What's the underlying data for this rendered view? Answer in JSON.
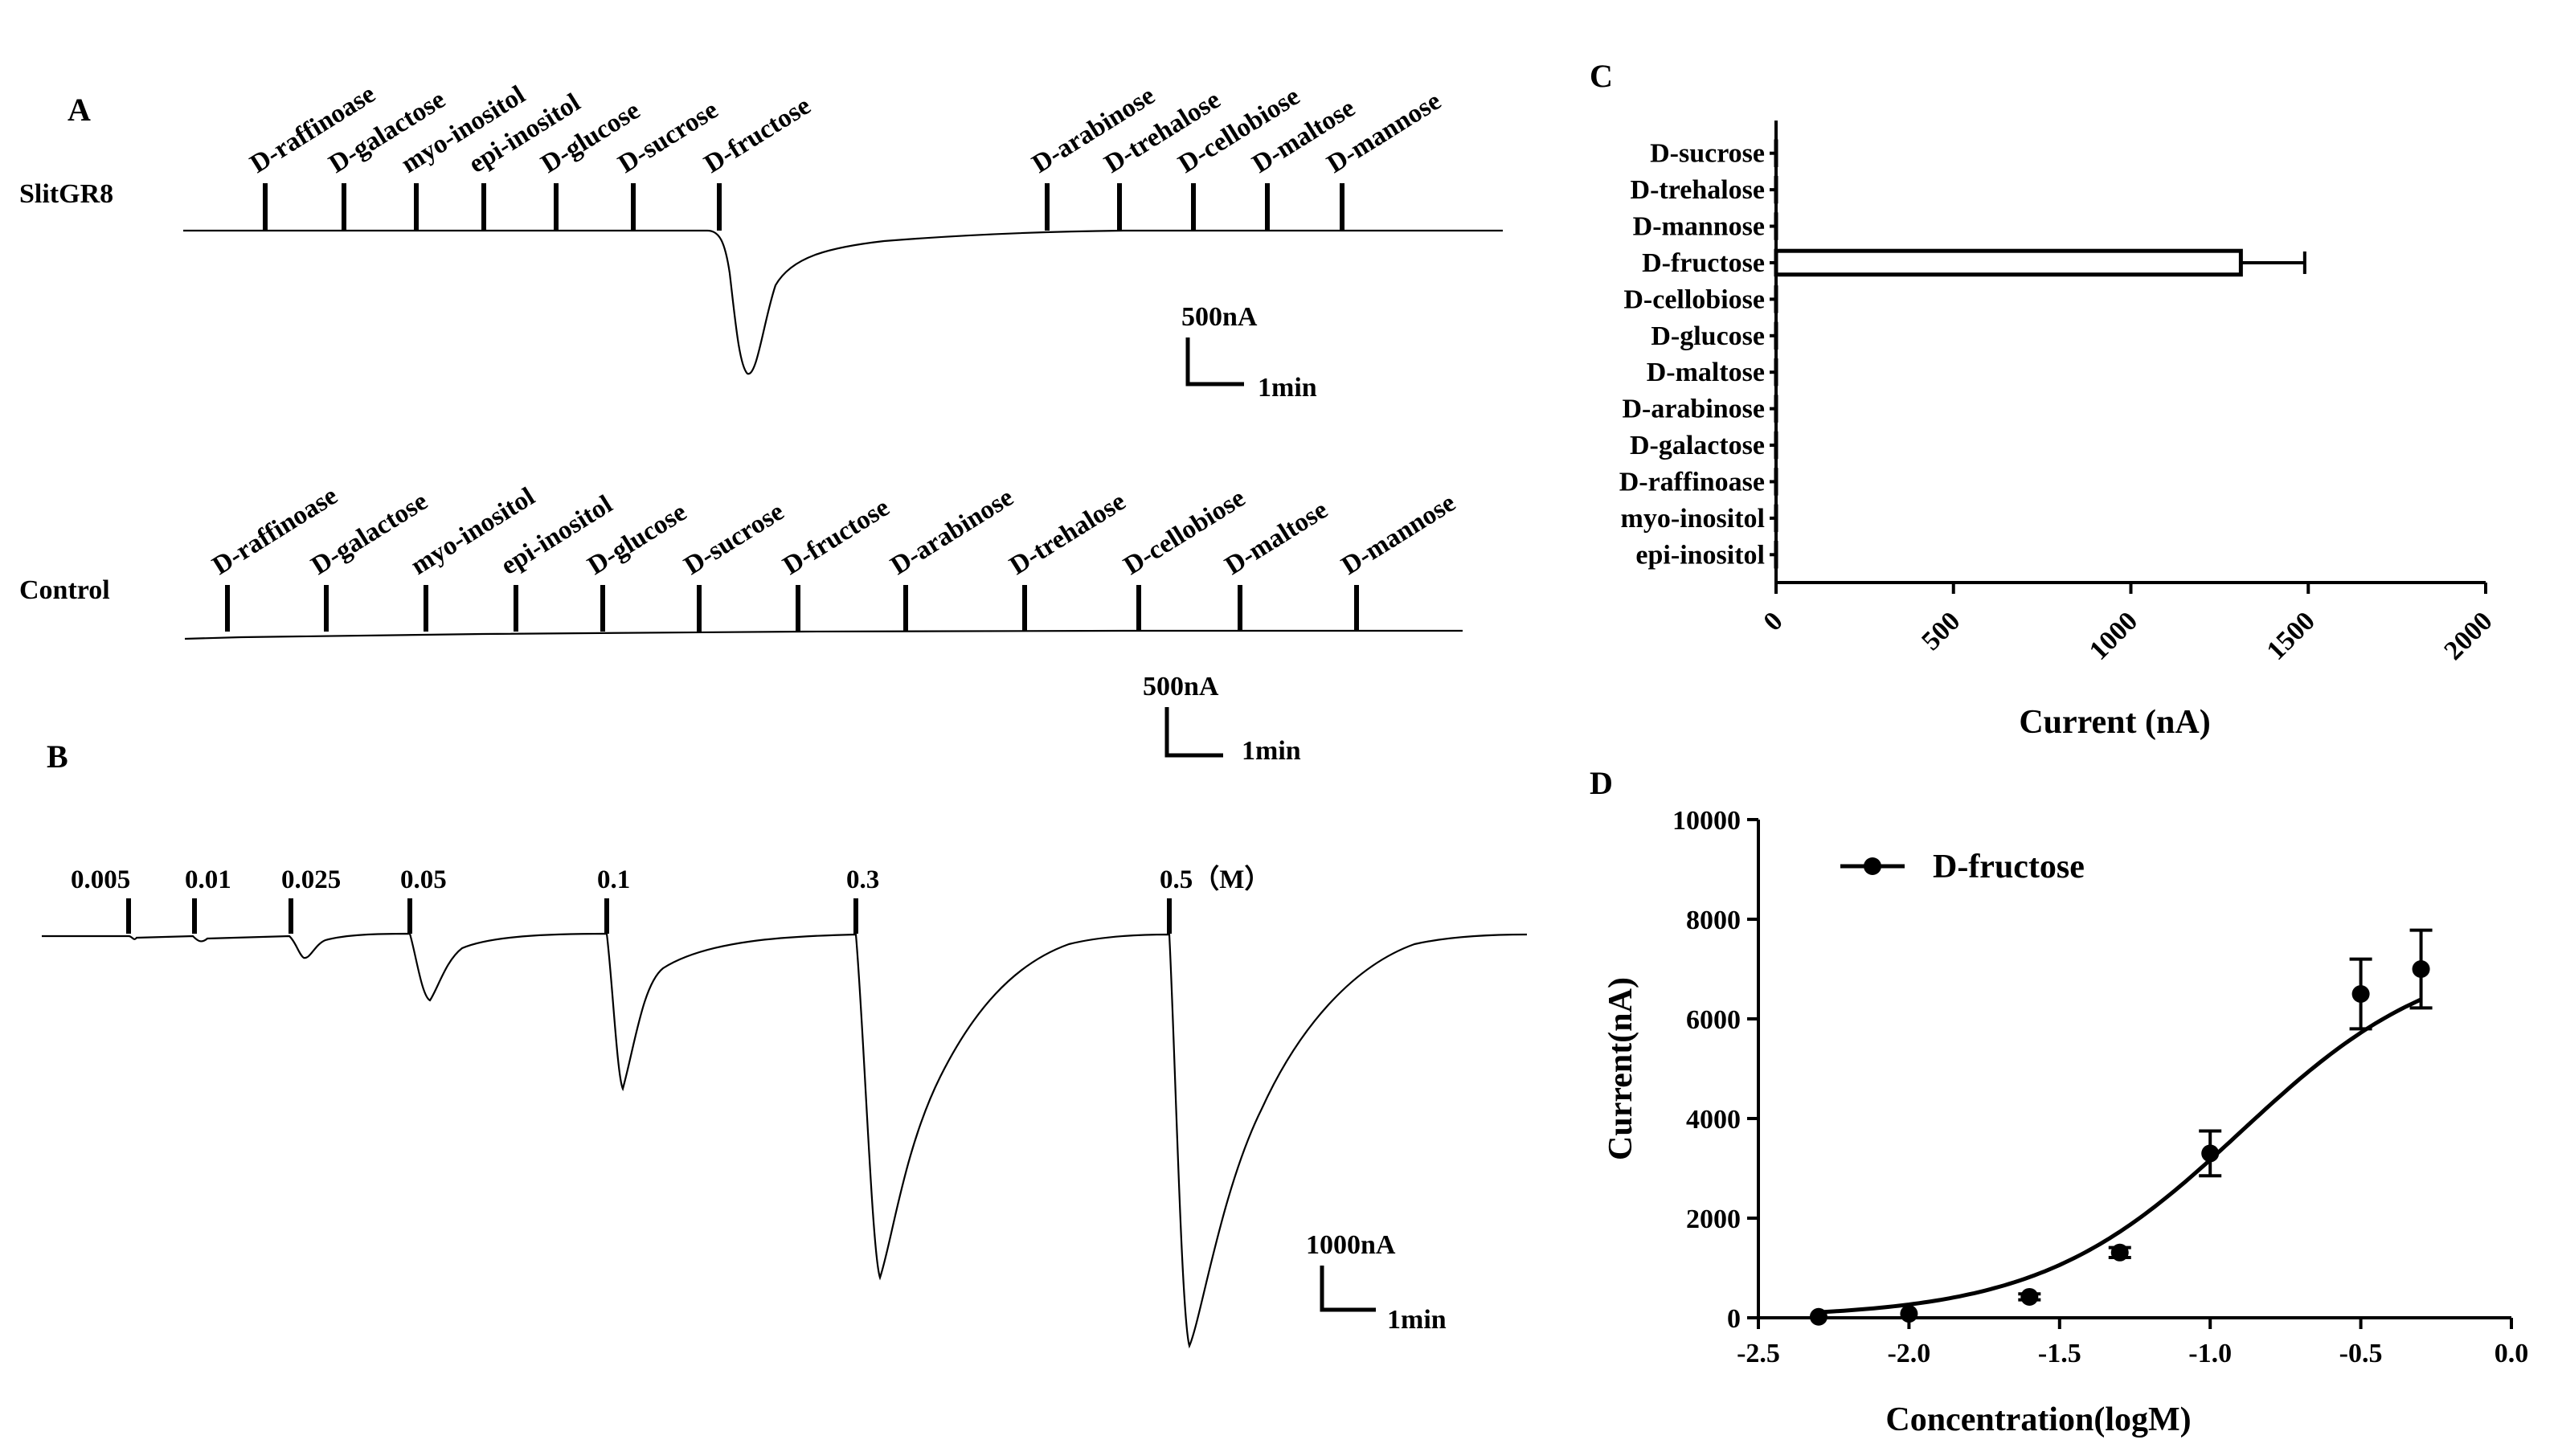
{
  "panels": {
    "A": {
      "letter": "A",
      "slit_row_label": "SlitGR8",
      "control_row_label": "Control",
      "slit_stimuli": [
        "D-raffinoase",
        "D-galactose",
        "myo-inositol",
        "epi-inositol",
        "D-glucose",
        "D-sucrose",
        "D-fructose",
        "D-arabinose",
        "D-trehalose",
        "D-cellobiose",
        "D-maltose",
        "D-mannose"
      ],
      "control_stimuli": [
        "D-raffinoase",
        "D-galactose",
        "myo-inositol",
        "epi-inositol",
        "D-glucose",
        "D-sucrose",
        "D-fructose",
        "D-arabinose",
        "D-trehalose",
        "D-cellobiose",
        "D-maltose",
        "D-mannose"
      ],
      "slit_scale": {
        "current": "500nA",
        "time": "1min"
      },
      "control_scale": {
        "current": "500nA",
        "time": "1min"
      }
    },
    "B": {
      "letter": "B",
      "concentration_labels": [
        "0.005",
        "0.01",
        "0.025",
        "0.05",
        "0.1",
        "0.3",
        "0.5（M）"
      ],
      "scale": {
        "current": "1000nA",
        "time": "1min"
      }
    },
    "C": {
      "letter": "C"
    },
    "D": {
      "letter": "D"
    }
  },
  "chart_data": [
    {
      "type": "bar",
      "panel": "C",
      "orientation": "horizontal",
      "categories": [
        "D-sucrose",
        "D-trehalose",
        "D-mannose",
        "D-fructose",
        "D-cellobiose",
        "D-glucose",
        "D-maltose",
        "D-arabinose",
        "D-galactose",
        "D-raffinoase",
        "myo-inositol",
        "epi-inositol"
      ],
      "values": [
        0,
        0,
        0,
        1310,
        0,
        0,
        0,
        0,
        0,
        0,
        0,
        0
      ],
      "errors": [
        0,
        0,
        0,
        180,
        0,
        0,
        0,
        0,
        0,
        0,
        0,
        0
      ],
      "xlabel": "Current (nA)",
      "ylabel": "",
      "xlim": [
        0,
        2000
      ],
      "xticks": [
        "0",
        "500",
        "1000",
        "1500",
        "2000"
      ],
      "grid": false
    },
    {
      "type": "scatter",
      "panel": "D",
      "series": [
        {
          "name": "D-fructose",
          "x": [
            -2.3,
            -2.0,
            -1.6,
            -1.3,
            -1.0,
            -0.5,
            -0.3
          ],
          "y": [
            20,
            80,
            420,
            1310,
            3300,
            6500,
            7000
          ],
          "errors": [
            0,
            0,
            60,
            100,
            450,
            700,
            780
          ]
        }
      ],
      "fit_curve": true,
      "xlabel": "Concentration(logM)",
      "ylabel": "Current(nA)",
      "xlim": [
        -2.5,
        0.0
      ],
      "ylim": [
        0,
        10000
      ],
      "xticks": [
        "-2.5",
        "-2.0",
        "-1.5",
        "-1.0",
        "-0.5",
        "0.0"
      ],
      "yticks": [
        "0",
        "2000",
        "4000",
        "6000",
        "8000",
        "10000"
      ],
      "legend_position": "top-left",
      "grid": false
    }
  ]
}
